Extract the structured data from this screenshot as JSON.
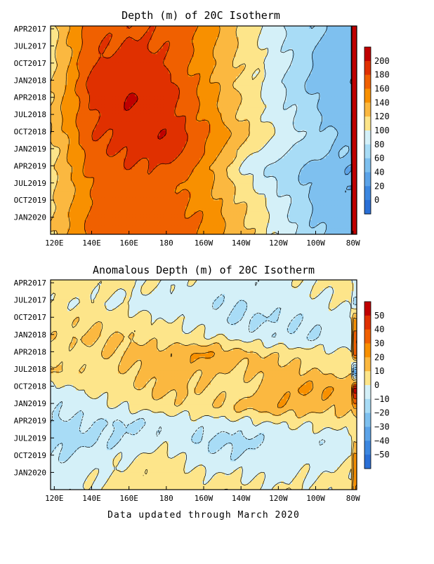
{
  "footer": "Data updated through March 2020",
  "time_labels": [
    "APR2017",
    "JUL2017",
    "OCT2017",
    "JAN2018",
    "APR2018",
    "JUL2018",
    "OCT2018",
    "JAN2019",
    "APR2019",
    "JUL2019",
    "OCT2019",
    "JAN2020"
  ],
  "lon_labels": [
    "120E",
    "140E",
    "160E",
    "180",
    "160W",
    "140W",
    "120W",
    "100W",
    "80W"
  ],
  "chart_data": [
    {
      "type": "heatmap",
      "title": "Depth (m) of 20C Isotherm",
      "x": [
        120,
        140,
        160,
        180,
        200,
        220,
        240,
        260,
        280
      ],
      "y_range": [
        "2017-03-15",
        "2020-03-31"
      ],
      "colorbar": {
        "labels": [
          "200",
          "180",
          "160",
          "140",
          "120",
          "100",
          "80",
          "60",
          "40",
          "20",
          "0"
        ],
        "levels": [
          210,
          200,
          180,
          160,
          140,
          120,
          100,
          80,
          60,
          40,
          20,
          0,
          -10
        ],
        "colors": [
          "#c00000",
          "#e03000",
          "#f06000",
          "#f89000",
          "#fbb840",
          "#fde58a",
          "#d4f0f8",
          "#a8dcf6",
          "#7ec0ef",
          "#5ca3e8",
          "#3c87e0",
          "#2a6fd6"
        ]
      },
      "profiles": [
        {
          "date": "2017-04",
          "values": [
            118,
            172,
            178,
            175,
            155,
            115,
            85,
            62,
            52
          ]
        },
        {
          "date": "2017-10",
          "values": [
            115,
            180,
            190,
            180,
            150,
            118,
            90,
            55,
            45
          ]
        },
        {
          "date": "2018-01",
          "values": [
            122,
            188,
            196,
            188,
            152,
            112,
            82,
            50,
            42
          ]
        },
        {
          "date": "2018-04",
          "values": [
            125,
            182,
            202,
            192,
            155,
            120,
            90,
            60,
            45
          ]
        },
        {
          "date": "2018-07",
          "values": [
            130,
            178,
            192,
            192,
            158,
            118,
            88,
            62,
            48
          ]
        },
        {
          "date": "2018-10",
          "values": [
            125,
            178,
            188,
            198,
            168,
            130,
            100,
            68,
            55
          ]
        },
        {
          "date": "2019-01",
          "values": [
            115,
            175,
            185,
            192,
            162,
            112,
            85,
            70,
            55
          ]
        },
        {
          "date": "2019-04",
          "values": [
            120,
            168,
            178,
            175,
            148,
            100,
            70,
            52,
            42
          ]
        },
        {
          "date": "2019-07",
          "values": [
            118,
            162,
            172,
            168,
            150,
            112,
            78,
            52,
            38
          ]
        },
        {
          "date": "2019-10",
          "values": [
            118,
            162,
            168,
            172,
            152,
            120,
            90,
            55,
            45
          ]
        },
        {
          "date": "2020-01",
          "values": [
            120,
            168,
            172,
            172,
            158,
            125,
            92,
            58,
            48
          ]
        },
        {
          "date": "2020-03",
          "values": [
            122,
            165,
            170,
            170,
            160,
            128,
            95,
            62,
            52
          ]
        }
      ]
    },
    {
      "type": "heatmap",
      "title": "Anomalous Depth (m) of 20C Isotherm",
      "x": [
        120,
        140,
        160,
        180,
        200,
        220,
        240,
        260,
        280
      ],
      "y_range": [
        "2017-03-15",
        "2020-03-31"
      ],
      "colorbar": {
        "labels": [
          "50",
          "40",
          "30",
          "20",
          "10",
          "0",
          "−10",
          "−20",
          "−30",
          "−40",
          "−50"
        ],
        "levels": [
          60,
          50,
          40,
          30,
          20,
          10,
          0,
          -10,
          -20,
          -30,
          -40,
          -50,
          -60
        ],
        "colors": [
          "#c00000",
          "#e03000",
          "#f06000",
          "#f89000",
          "#fbb840",
          "#fde58a",
          "#d4f0f8",
          "#a8dcf6",
          "#7ec0ef",
          "#5ca3e8",
          "#3c87e0",
          "#2a6fd6"
        ]
      },
      "profiles": [
        {
          "date": "2017-04",
          "values": [
            5,
            4,
            2,
            0,
            -3,
            -5,
            -2,
            0,
            5
          ]
        },
        {
          "date": "2017-07",
          "values": [
            2,
            0,
            -3,
            -6,
            -8,
            -10,
            -5,
            -3,
            2
          ]
        },
        {
          "date": "2017-10",
          "values": [
            6,
            8,
            5,
            0,
            -5,
            -12,
            -10,
            -8,
            -4
          ]
        },
        {
          "date": "2018-01",
          "values": [
            8,
            12,
            10,
            4,
            2,
            -3,
            -8,
            -10,
            -6
          ]
        },
        {
          "date": "2018-04",
          "values": [
            4,
            8,
            12,
            16,
            22,
            14,
            8,
            5,
            2
          ]
        },
        {
          "date": "2018-07",
          "values": [
            12,
            5,
            10,
            15,
            12,
            8,
            15,
            10,
            6
          ]
        },
        {
          "date": "2018-10",
          "values": [
            -5,
            3,
            8,
            14,
            8,
            5,
            18,
            22,
            15
          ]
        },
        {
          "date": "2019-01",
          "values": [
            -8,
            -4,
            2,
            6,
            8,
            12,
            18,
            15,
            12
          ]
        },
        {
          "date": "2019-04",
          "values": [
            -12,
            -10,
            -12,
            -8,
            -5,
            -4,
            0,
            2,
            5
          ]
        },
        {
          "date": "2019-07",
          "values": [
            -15,
            -12,
            -8,
            -4,
            -12,
            -14,
            -6,
            -8,
            -4
          ]
        },
        {
          "date": "2019-10",
          "values": [
            -10,
            -6,
            0,
            4,
            -6,
            -8,
            -5,
            -3,
            -2
          ]
        },
        {
          "date": "2020-01",
          "values": [
            -6,
            -2,
            3,
            5,
            2,
            0,
            -3,
            0,
            2
          ]
        },
        {
          "date": "2020-03",
          "values": [
            -4,
            0,
            4,
            6,
            4,
            2,
            0,
            2,
            4
          ]
        }
      ]
    }
  ]
}
